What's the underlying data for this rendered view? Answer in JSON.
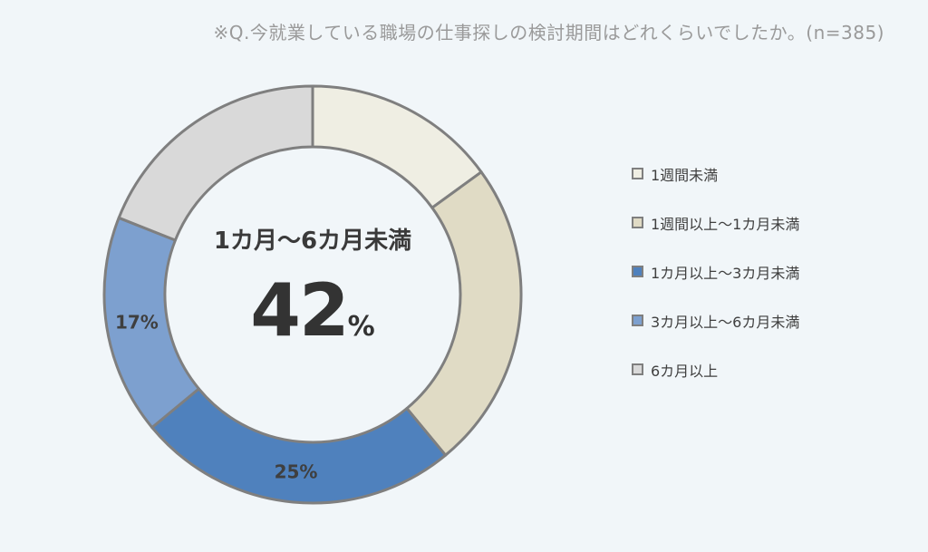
{
  "question": "※Q.今就業している職場の仕事探しの検討期間はどれくらいでしたか。(n=385)",
  "center": {
    "label": "1カ月〜6カ月未満",
    "value": "42",
    "unit": "%"
  },
  "chart_data": {
    "type": "pie",
    "donut": true,
    "categories": [
      "1週間未満",
      "1週間以上〜1カ月未満",
      "1カ月以上〜3カ月未満",
      "3カ月以上〜6カ月未満",
      "6カ月以上"
    ],
    "values": [
      15,
      24,
      25,
      17,
      19
    ],
    "data_labels": [
      "",
      "",
      "25%",
      "17%",
      ""
    ],
    "colors": [
      "#efeee3",
      "#e0dbc5",
      "#4f81bd",
      "#7da0cf",
      "#d9d9d9"
    ],
    "legend_position": "right"
  }
}
